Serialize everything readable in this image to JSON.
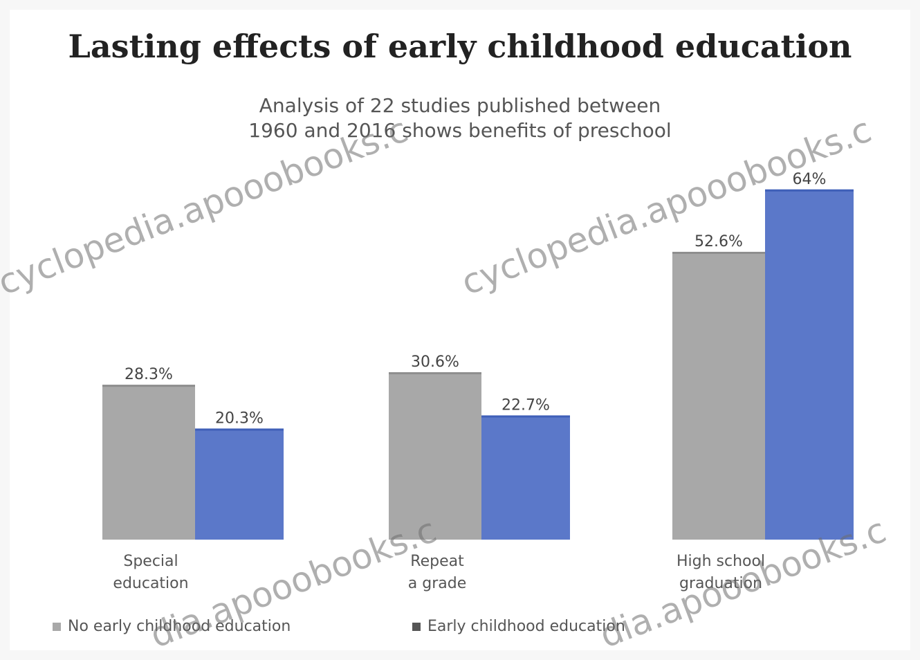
{
  "chart_data": {
    "type": "bar",
    "title": "Lasting effects of early childhood education",
    "subtitle": [
      "Analysis of 22 studies published between",
      "1960 and 2016 shows benefits of preschool"
    ],
    "categories": [
      "Special\neducation",
      "Repeat\na grade",
      "High school\ngraduation"
    ],
    "series": [
      {
        "name": "No early childhood education",
        "values": [
          28.3,
          30.6,
          52.6
        ],
        "labels": [
          "28.3%",
          "30.6%",
          "52.6%"
        ]
      },
      {
        "name": "Early childhood education",
        "values": [
          20.3,
          22.7,
          64
        ],
        "labels": [
          "20.3%",
          "22.7%",
          "64%"
        ]
      }
    ],
    "ylim": [
      0,
      66
    ],
    "grid": false,
    "legend": "bottom-left",
    "colors": [
      "#a8a8a8",
      "#5b78c9"
    ]
  },
  "watermark": {
    "text_a": "cyclopedia.apooobooks.c",
    "text_b": "cyclopedia.apooobooks.c",
    "text_c": "dia.apooobooks.c",
    "text_d": "dia.apooobooks.c"
  }
}
